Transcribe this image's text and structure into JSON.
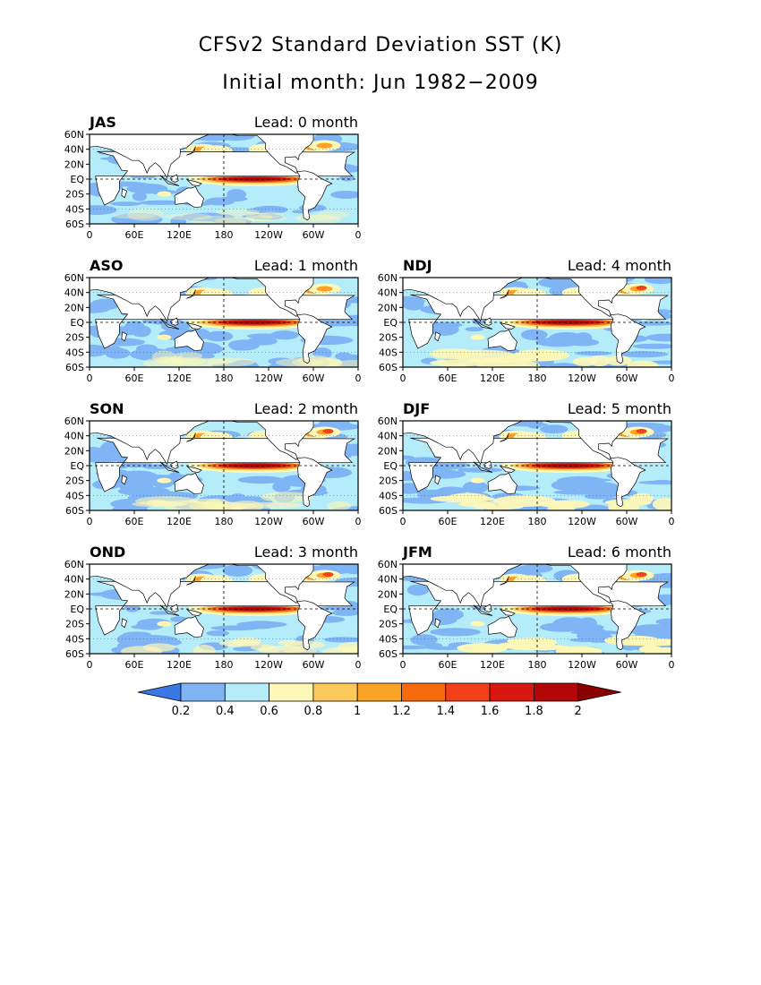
{
  "title": "CFSv2 Standard Deviation SST (K)",
  "subtitle": "Initial month: Jun 1982−2009",
  "lat_labels": [
    "60N",
    "40N",
    "20N",
    "EQ",
    "20S",
    "40S",
    "60S"
  ],
  "lon_labels": [
    "0",
    "60E",
    "120E",
    "180",
    "120W",
    "60W",
    "0"
  ],
  "panels": [
    {
      "season": "JAS",
      "lead": "Lead: 0 month"
    },
    {
      "season": "ASO",
      "lead": "Lead: 1 month"
    },
    {
      "season": "NDJ",
      "lead": "Lead: 4 month"
    },
    {
      "season": "SON",
      "lead": "Lead: 2 month"
    },
    {
      "season": "DJF",
      "lead": "Lead: 5 month"
    },
    {
      "season": "OND",
      "lead": "Lead: 3 month"
    },
    {
      "season": "JFM",
      "lead": "Lead: 6 month"
    }
  ],
  "colorbar": {
    "labels": [
      "0.2",
      "0.4",
      "0.6",
      "0.8",
      "1",
      "1.2",
      "1.4",
      "1.6",
      "1.8",
      "2"
    ],
    "colors": [
      "#3a78e6",
      "#7fb4f5",
      "#b4ecfa",
      "#fdf7b8",
      "#fcc85a",
      "#fba324",
      "#f76a0c",
      "#f2401a",
      "#d8180e",
      "#b30606",
      "#8a0000"
    ]
  },
  "legend_colors": {
    "land": "#ffffff",
    "low": "#b4ecfa",
    "mid": "#7fb4f5",
    "warm": "#fdf7b8",
    "hot": "#d8180e"
  }
}
